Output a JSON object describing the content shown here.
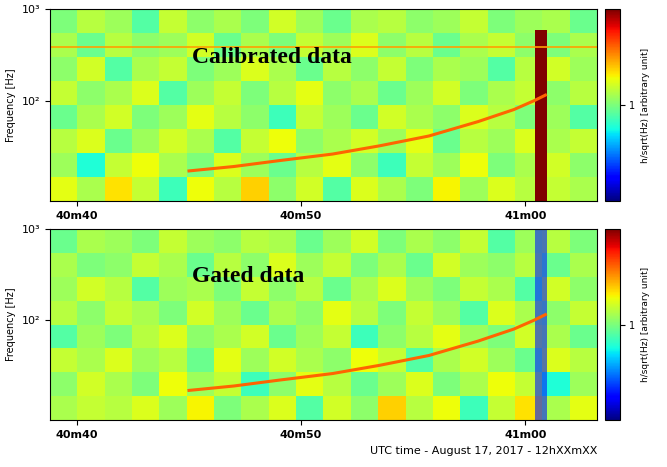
{
  "chart_data": [
    {
      "type": "heatmap",
      "annotation": "Calibrated data",
      "ylabel": "Frequency [Hz]",
      "colorbar_label": "h/sqrt(Hz) [arbitrary unit]",
      "colorbar_range": [
        0.1,
        10
      ],
      "colorbar_ticks": [
        1
      ],
      "log": "y",
      "xlim": [
        2438.8,
        2463.2
      ],
      "xticks": [
        {
          "value": 2440,
          "label": "40m40"
        },
        {
          "value": 2450,
          "label": "40m50"
        },
        {
          "value": 2460,
          "label": "41m00"
        }
      ],
      "ylim": [
        8,
        1000
      ],
      "yticks": [
        {
          "value": 100,
          "label": "10²"
        },
        {
          "value": 1000,
          "label": "10³"
        }
      ],
      "time_edges": [
        2438.8,
        2440.02,
        2441.24,
        2442.46,
        2443.68,
        2444.9,
        2446.12,
        2447.34,
        2448.56,
        2449.78,
        2451.0,
        2452.22,
        2453.44,
        2454.66,
        2455.88,
        2457.1,
        2458.32,
        2459.54,
        2460.76,
        2461.98,
        2463.2
      ],
      "freq_edges": [
        8,
        14.6,
        26.8,
        49,
        89.4,
        163.5,
        299,
        547,
        1000
      ],
      "cells": [
        [
          1.8,
          1.3,
          2.2,
          1.5,
          0.7,
          1.9,
          1.4,
          2.4,
          1.1,
          1.6,
          0.8,
          1.7,
          1.3,
          1.0,
          2.0,
          1.2,
          1.7,
          1.4,
          1.5,
          1.3
        ],
        [
          1.2,
          0.6,
          1.5,
          1.9,
          1.3,
          1.0,
          1.7,
          1.2,
          0.9,
          1.4,
          1.8,
          1.1,
          0.7,
          1.5,
          1.2,
          1.9,
          1.0,
          1.3,
          1.6,
          1.1
        ],
        [
          1.4,
          1.7,
          0.9,
          1.2,
          1.6,
          1.3,
          0.8,
          1.5,
          1.9,
          1.1,
          1.3,
          1.6,
          1.2,
          1.8,
          0.9,
          1.4,
          1.2,
          1.7,
          1.3,
          1.5
        ],
        [
          0.9,
          1.3,
          1.6,
          1.0,
          1.2,
          1.8,
          1.4,
          1.1,
          0.7,
          1.5,
          1.2,
          0.9,
          1.6,
          1.3,
          1.1,
          1.7,
          1.4,
          1.0,
          1.2,
          0.8
        ],
        [
          1.5,
          1.1,
          1.3,
          1.7,
          0.8,
          1.2,
          1.5,
          1.0,
          1.4,
          1.8,
          1.1,
          1.3,
          0.9,
          1.2,
          1.6,
          1.0,
          1.3,
          1.5,
          1.1,
          1.4
        ],
        [
          1.1,
          1.6,
          0.8,
          1.3,
          1.5,
          1.0,
          1.2,
          1.7,
          1.3,
          0.9,
          1.4,
          1.1,
          1.5,
          1.0,
          1.3,
          1.2,
          0.8,
          1.4,
          1.6,
          1.2
        ],
        [
          1.3,
          0.9,
          1.4,
          1.1,
          1.2,
          1.6,
          0.9,
          1.3,
          1.0,
          1.5,
          1.2,
          1.7,
          1.1,
          1.4,
          0.9,
          1.3,
          1.5,
          1.1,
          1.0,
          1.3
        ],
        [
          1.0,
          1.4,
          1.2,
          0.8,
          1.5,
          1.1,
          1.3,
          1.0,
          1.6,
          1.2,
          0.9,
          1.3,
          1.4,
          1.1,
          1.2,
          1.5,
          1.0,
          1.2,
          1.3,
          0.9
        ]
      ],
      "chirp": {
        "x": [
          2445.0,
          2447.0,
          2449.0,
          2451.4,
          2453.5,
          2455.7,
          2457.9,
          2459.5,
          2460.4,
          2460.9
        ],
        "y": [
          17,
          19,
          22,
          26,
          32,
          41,
          59,
          80,
          100,
          115
        ],
        "value": 4
      },
      "spectral_line": {
        "frequency": 390,
        "value": 3
      },
      "glitch": {
        "t_start": 2460.45,
        "t_end": 2460.95,
        "f_max": 600,
        "value": 10
      }
    },
    {
      "type": "heatmap",
      "annotation": "Gated data",
      "ylabel": "Frequency [Hz]",
      "xlabel": "UTC time - August 17, 2017 - 12hXXmXX",
      "colorbar_label": "h/sqrt(Hz) [arbitrary unit]",
      "colorbar_range": [
        0.1,
        10
      ],
      "colorbar_ticks": [
        1
      ],
      "log": "y",
      "xlim": [
        2438.8,
        2463.2
      ],
      "xticks": [
        {
          "value": 2440,
          "label": "40m40"
        },
        {
          "value": 2450,
          "label": "40m50"
        },
        {
          "value": 2460,
          "label": "41m00"
        }
      ],
      "ylim": [
        8,
        1000
      ],
      "yticks": [
        {
          "value": 100,
          "label": "10²"
        },
        {
          "value": 1000,
          "label": "10³"
        }
      ],
      "time_edges": [
        2438.8,
        2440.02,
        2441.24,
        2442.46,
        2443.68,
        2444.9,
        2446.12,
        2447.34,
        2448.56,
        2449.78,
        2451.0,
        2452.22,
        2453.44,
        2454.66,
        2455.88,
        2457.1,
        2458.32,
        2459.54,
        2460.76,
        2461.98,
        2463.2
      ],
      "freq_edges": [
        8,
        14.6,
        26.8,
        49,
        89.4,
        163.5,
        299,
        547,
        1000
      ],
      "cells": [
        [
          1.3,
          1.5,
          1.4,
          1.7,
          1.2,
          2.0,
          1.0,
          1.3,
          1.7,
          0.8,
          1.6,
          1.1,
          2.4,
          1.4,
          1.9,
          0.7,
          1.5,
          2.2,
          1.3,
          1.8
        ],
        [
          1.1,
          1.6,
          1.3,
          1.0,
          1.9,
          1.2,
          1.5,
          0.7,
          1.1,
          1.8,
          1.4,
          0.9,
          1.2,
          1.7,
          1.0,
          1.3,
          1.9,
          1.5,
          0.6,
          1.2
        ],
        [
          1.5,
          1.3,
          1.7,
          1.2,
          1.4,
          0.9,
          1.8,
          1.2,
          1.6,
          1.3,
          1.1,
          1.9,
          1.5,
          0.8,
          1.3,
          1.6,
          1.2,
          0.9,
          1.7,
          1.4
        ],
        [
          0.8,
          1.2,
          1.0,
          1.4,
          1.7,
          1.1,
          1.3,
          1.6,
          0.9,
          1.2,
          1.5,
          0.7,
          1.1,
          1.4,
          1.8,
          1.2,
          1.0,
          1.6,
          1.3,
          0.9
        ],
        [
          1.4,
          1.1,
          1.5,
          1.3,
          1.0,
          1.6,
          1.2,
          0.9,
          1.3,
          1.1,
          1.8,
          1.4,
          1.0,
          1.5,
          1.2,
          0.8,
          1.7,
          1.3,
          1.1,
          1.5
        ],
        [
          1.2,
          1.6,
          1.4,
          0.8,
          1.2,
          1.3,
          1.0,
          1.5,
          1.1,
          1.4,
          0.9,
          1.3,
          1.7,
          1.2,
          1.0,
          1.5,
          1.3,
          0.8,
          1.6,
          1.1
        ],
        [
          1.3,
          1.0,
          1.1,
          1.5,
          1.3,
          0.9,
          1.4,
          1.1,
          1.7,
          1.2,
          1.5,
          1.0,
          1.3,
          0.9,
          1.6,
          1.2,
          1.1,
          1.4,
          0.9,
          1.3
        ],
        [
          0.9,
          1.3,
          1.2,
          1.0,
          1.5,
          1.2,
          1.1,
          1.4,
          1.3,
          0.9,
          1.2,
          1.6,
          1.0,
          1.3,
          1.1,
          1.5,
          0.8,
          1.2,
          1.4,
          1.0
        ]
      ],
      "chirp": {
        "x": [
          2445.0,
          2447.0,
          2449.0,
          2451.4,
          2453.5,
          2455.7,
          2457.9,
          2459.5,
          2460.4,
          2460.9
        ],
        "y": [
          17,
          19,
          22,
          26,
          32,
          41,
          59,
          80,
          100,
          115
        ],
        "value": 4
      },
      "gate": {
        "t_start": 2460.45,
        "t_end": 2460.95,
        "value": 0.2
      }
    }
  ]
}
